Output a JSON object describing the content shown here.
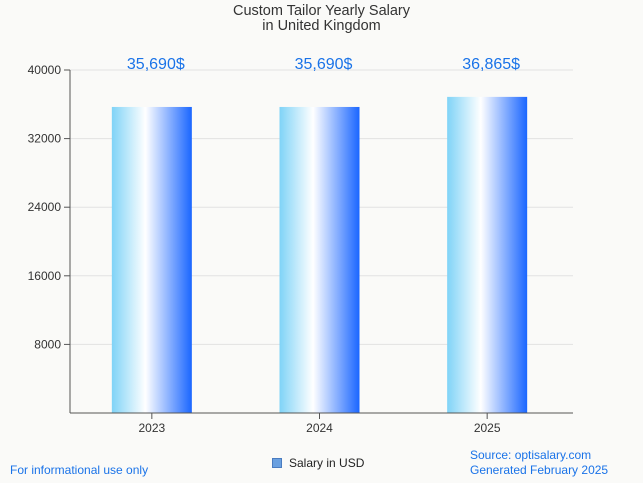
{
  "title_lines": [
    "Custom Tailor Yearly Salary",
    "in United Kingdom"
  ],
  "chart_data": {
    "type": "bar",
    "title": "Custom Tailor Yearly Salary in United Kingdom",
    "categories": [
      "2023",
      "2024",
      "2025"
    ],
    "series": [
      {
        "name": "Salary in USD",
        "values": [
          35690,
          35690,
          36865
        ]
      }
    ],
    "value_labels": [
      "35,690$",
      "35,690$",
      "36,865$"
    ],
    "y_ticks": [
      8000,
      16000,
      24000,
      32000,
      40000
    ],
    "ylim": [
      0,
      40000
    ],
    "grid": true,
    "legend_position": "bottom"
  },
  "legend": {
    "label": "Salary in USD"
  },
  "footer": {
    "left": "For informational use only",
    "source": "Source: optisalary.com",
    "generated": "Generated February 2025"
  },
  "colors": {
    "bar_gradient": [
      "#7fd3f7",
      "#ffffff",
      "#1a66ff"
    ],
    "value_label": "#1a73e8",
    "footer_text": "#1a73e8"
  }
}
